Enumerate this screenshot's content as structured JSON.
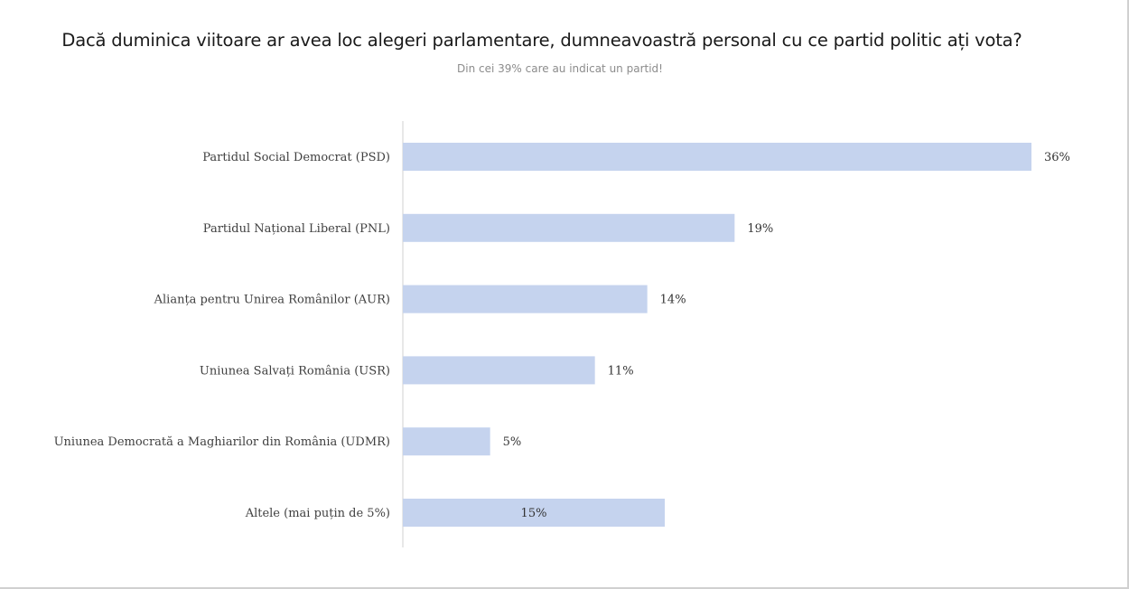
{
  "title": "Dacă duminica viitoare ar avea loc alegeri parlamentare, dumneavoastră personal cu ce partid politic ați vota?",
  "subtitle": "Din cei 39% care au indicat un partid!",
  "colors": {
    "bar": "#c5d3ee",
    "axis": "#d0d0d0"
  },
  "chart_data": {
    "type": "bar",
    "orientation": "horizontal",
    "title": "Dacă duminica viitoare ar avea loc alegeri parlamentare, dumneavoastră personal cu ce partid politic ați vota?",
    "subtitle": "Din cei 39% care au indicat un partid!",
    "categories": [
      "Partidul Social Democrat (PSD)",
      "Partidul Național Liberal (PNL)",
      "Alianța pentru Unirea Românilor (AUR)",
      "Uniunea Salvați România (USR)",
      "Uniunea Democrată a Maghiarilor din România (UDMR)",
      "Altele (mai puțin de 5%)"
    ],
    "values": [
      36,
      19,
      14,
      11,
      5,
      15
    ],
    "value_labels": [
      "36%",
      "19%",
      "14%",
      "11%",
      "5%",
      "15%"
    ],
    "xlim": [
      0,
      36
    ],
    "xlabel": "",
    "ylabel": "",
    "grid": false,
    "legend": "none"
  }
}
